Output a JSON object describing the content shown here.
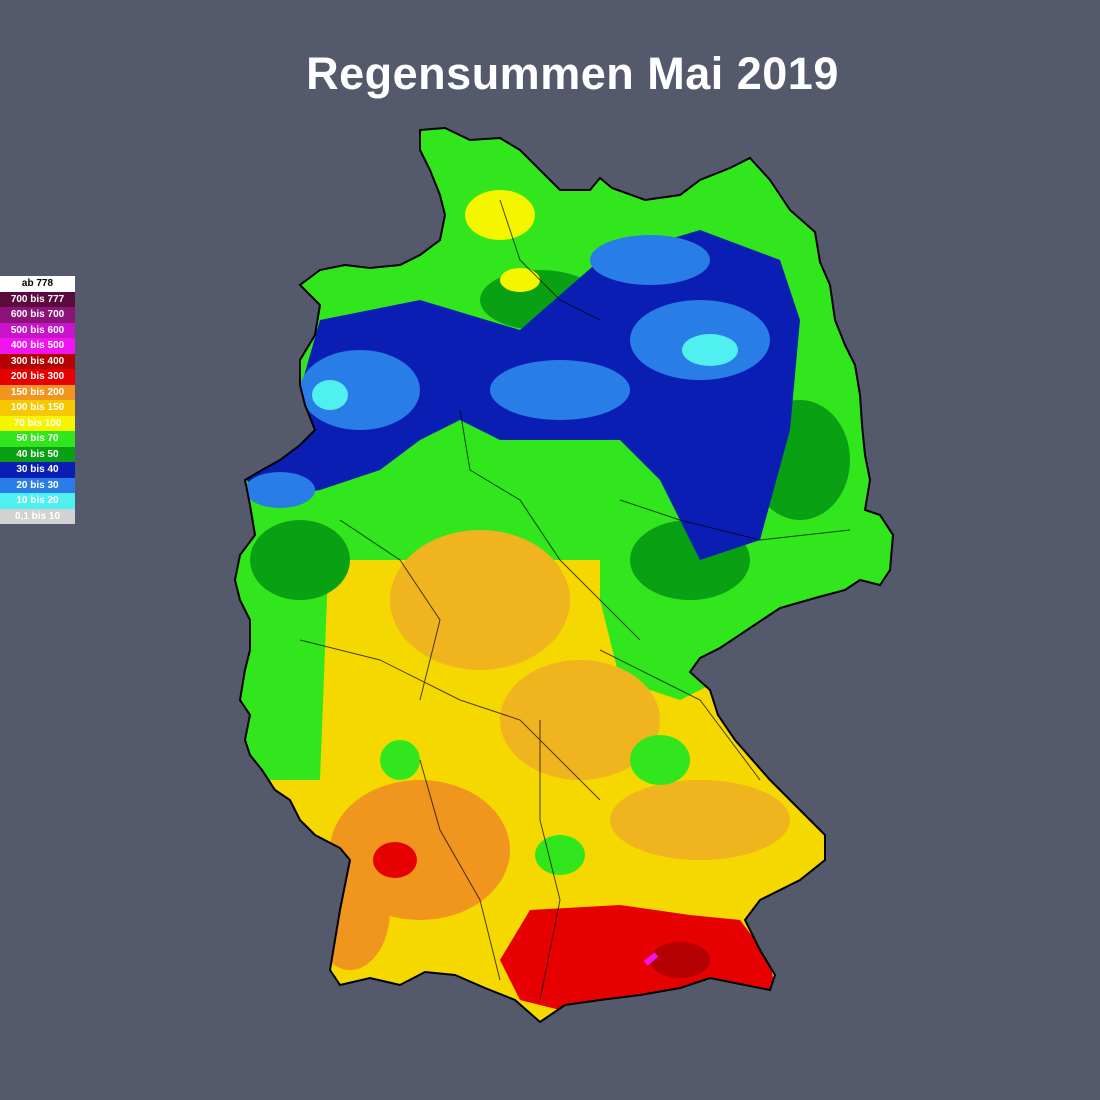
{
  "title": "Regensummen Mai 2019",
  "legend": [
    {
      "label": "ab 778",
      "color": "#ffffff",
      "text": "#000000"
    },
    {
      "label": "700 bis 777",
      "color": "#5a0a3c",
      "text": "#ffffff"
    },
    {
      "label": "600 bis 700",
      "color": "#8c1478",
      "text": "#ffffff"
    },
    {
      "label": "500 bis 600",
      "color": "#c814c8",
      "text": "#ffffff"
    },
    {
      "label": "400 bis 500",
      "color": "#f014f0",
      "text": "#ffffff"
    },
    {
      "label": "300 bis 400",
      "color": "#b40000",
      "text": "#ffffff"
    },
    {
      "label": "200 bis 300",
      "color": "#e60000",
      "text": "#ffffff"
    },
    {
      "label": "150 bis 200",
      "color": "#f0961e",
      "text": "#ffffff"
    },
    {
      "label": "100 bis 150",
      "color": "#f5c800",
      "text": "#ffffff"
    },
    {
      "label": "70 bis 100",
      "color": "#f5f500",
      "text": "#ffffff"
    },
    {
      "label": "50 bis 70",
      "color": "#32e61e",
      "text": "#ffffff"
    },
    {
      "label": "40 bis 50",
      "color": "#0aa014",
      "text": "#ffffff"
    },
    {
      "label": "30 bis 40",
      "color": "#0a1eb4",
      "text": "#ffffff"
    },
    {
      "label": "20 bis 30",
      "color": "#287de6",
      "text": "#ffffff"
    },
    {
      "label": "10 bis 20",
      "color": "#50f0f0",
      "text": "#ffffff"
    },
    {
      "label": "0,1 bis 10",
      "color": "#d2d2d2",
      "text": "#ffffff"
    }
  ]
}
